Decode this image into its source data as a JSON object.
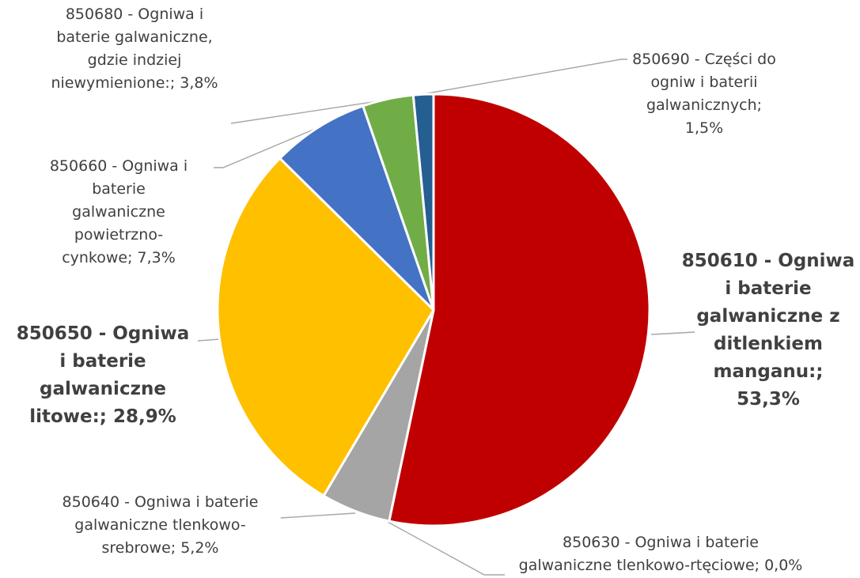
{
  "chart_data": {
    "type": "pie",
    "title": "",
    "start_angle_deg": 0,
    "direction": "clockwise",
    "slices": [
      {
        "code": "850610",
        "name": "850610 - Ogniwa i baterie galwaniczne z ditlenkiem manganu:",
        "value": 53.3,
        "pct_label": "53,3%",
        "color": "#C00000",
        "label_bold": true,
        "label_lines": [
          "850610 - Ogniwa",
          "i baterie",
          "galwaniczne z",
          "ditlenkiem",
          "manganu:;",
          "53,3%"
        ]
      },
      {
        "code": "850630",
        "name": "850630 - Ogniwa i baterie galwaniczne tlenkowo-rtęciowe",
        "value": 0.0,
        "pct_label": "0,0%",
        "color": "#7F7F7F",
        "label_bold": false,
        "label_lines": [
          "850630 - Ogniwa i baterie",
          "galwaniczne tlenkowo-rtęciowe; 0,0%"
        ]
      },
      {
        "code": "850640",
        "name": "850640 - Ogniwa i baterie galwaniczne tlenkowo-srebrowe",
        "value": 5.2,
        "pct_label": "5,2%",
        "color": "#A5A5A5",
        "label_bold": false,
        "label_lines": [
          "850640 - Ogniwa i baterie",
          "galwaniczne tlenkowo-",
          "srebrowe; 5,2%"
        ]
      },
      {
        "code": "850650",
        "name": "850650 - Ogniwa i baterie galwaniczne litowe:",
        "value": 28.9,
        "pct_label": "28,9%",
        "color": "#FFC000",
        "label_bold": true,
        "label_lines": [
          "850650 - Ogniwa",
          "i baterie",
          "galwaniczne",
          "litowe:; 28,9%"
        ]
      },
      {
        "code": "850660",
        "name": "850660 - Ogniwa i baterie galwaniczne powietrzno-cynkowe",
        "value": 7.3,
        "pct_label": "7,3%",
        "color": "#4472C4",
        "label_bold": false,
        "label_lines": [
          "850660 - Ogniwa i",
          "baterie",
          "galwaniczne",
          "powietrzno-",
          "cynkowe; 7,3%"
        ]
      },
      {
        "code": "850680",
        "name": "850680 - Ogniwa i baterie galwaniczne, gdzie indziej niewymienione:",
        "value": 3.8,
        "pct_label": "3,8%",
        "color": "#70AD47",
        "label_bold": false,
        "label_lines": [
          "850680 - Ogniwa i",
          "baterie galwaniczne,",
          "gdzie indziej",
          "niewymienione:; 3,8%"
        ]
      },
      {
        "code": "850690",
        "name": "850690 - Części do ogniw i baterii galwanicznych",
        "value": 1.5,
        "pct_label": "1,5%",
        "color": "#255E91",
        "label_bold": false,
        "label_lines": [
          "850690 - Części do",
          "ogniw i baterii",
          "galwanicznych;",
          "1,5%"
        ]
      }
    ]
  }
}
